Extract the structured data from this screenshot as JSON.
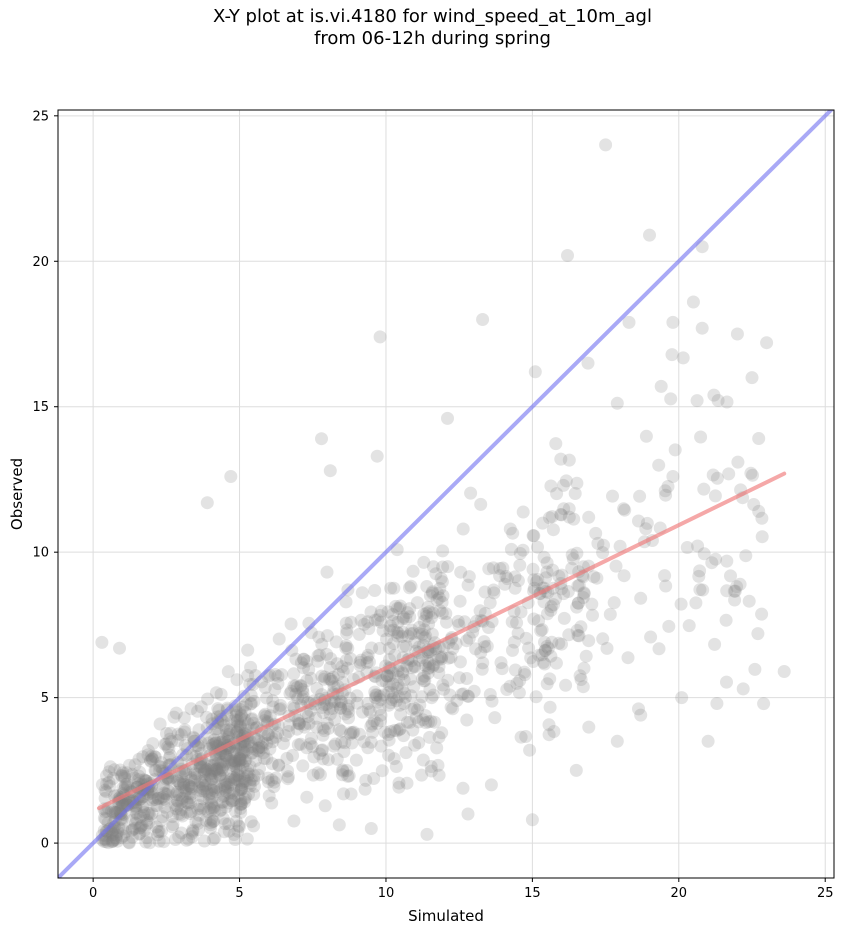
{
  "title_lines": [
    "X-Y plot at is.vi.4180 for wind_speed_at_10m_agl",
    "from 06-12h during spring"
  ],
  "chart_data": {
    "type": "scatter",
    "title": "X-Y plot at is.vi.4180 for wind_speed_at_10m_agl from 06-12h during spring",
    "xlabel": "Simulated",
    "ylabel": "Observed",
    "xlim": [
      -1.2,
      25.3
    ],
    "ylim": [
      -1.2,
      25.2
    ],
    "xticks": [
      0,
      5,
      10,
      15,
      20,
      25
    ],
    "yticks": [
      0,
      5,
      10,
      15,
      20,
      25
    ],
    "grid": true,
    "point_color": "#808080",
    "point_opacity": 0.22,
    "reference_line": {
      "color": "#6f6ff0",
      "x": [
        -1.2,
        25.3
      ],
      "y": [
        -1.2,
        25.3
      ]
    },
    "fit_line": {
      "color": "#f07a7a",
      "x": [
        0.2,
        23.6
      ],
      "y": [
        1.2,
        12.7
      ]
    },
    "outliers": [
      {
        "x": 17.5,
        "y": 24.0
      },
      {
        "x": 19.0,
        "y": 20.9
      },
      {
        "x": 16.2,
        "y": 20.2
      },
      {
        "x": 20.8,
        "y": 20.5
      },
      {
        "x": 9.8,
        "y": 17.4
      },
      {
        "x": 13.3,
        "y": 18.0
      },
      {
        "x": 20.5,
        "y": 18.6
      },
      {
        "x": 23.0,
        "y": 17.2
      },
      {
        "x": 18.3,
        "y": 17.9
      },
      {
        "x": 19.8,
        "y": 17.9
      },
      {
        "x": 22.0,
        "y": 17.5
      },
      {
        "x": 20.8,
        "y": 17.7
      },
      {
        "x": 15.1,
        "y": 16.2
      },
      {
        "x": 16.9,
        "y": 16.5
      },
      {
        "x": 22.5,
        "y": 16.0
      },
      {
        "x": 21.2,
        "y": 15.4
      },
      {
        "x": 19.4,
        "y": 15.7
      },
      {
        "x": 12.1,
        "y": 14.6
      },
      {
        "x": 8.1,
        "y": 12.8
      },
      {
        "x": 9.7,
        "y": 13.3
      },
      {
        "x": 4.7,
        "y": 12.6
      },
      {
        "x": 7.8,
        "y": 13.9
      },
      {
        "x": 3.9,
        "y": 11.7
      },
      {
        "x": 15.0,
        "y": 0.8
      },
      {
        "x": 23.6,
        "y": 5.9
      },
      {
        "x": 21.0,
        "y": 3.5
      },
      {
        "x": 17.9,
        "y": 3.5
      },
      {
        "x": 22.7,
        "y": 7.2
      },
      {
        "x": 22.2,
        "y": 5.3
      },
      {
        "x": 18.7,
        "y": 4.4
      },
      {
        "x": 16.5,
        "y": 2.5
      },
      {
        "x": 12.8,
        "y": 1.0
      },
      {
        "x": 11.4,
        "y": 0.3
      },
      {
        "x": 9.5,
        "y": 0.5
      },
      {
        "x": 0.3,
        "y": 6.9
      },
      {
        "x": 0.9,
        "y": 6.7
      },
      {
        "x": 20.1,
        "y": 5.0
      },
      {
        "x": 13.6,
        "y": 2.0
      },
      {
        "x": 21.3,
        "y": 4.8
      },
      {
        "x": 19.8,
        "y": 12.6
      }
    ]
  }
}
